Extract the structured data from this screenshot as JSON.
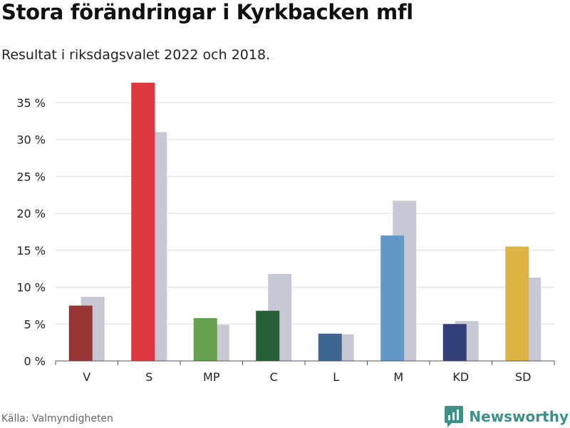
{
  "header": {
    "title": "Stora förändringar i Kyrkbacken mfl",
    "subtitle": "Resultat i riksdagsvalet 2022 och 2018."
  },
  "footer": {
    "source": "Källa: Valmyndigheten",
    "brand": "Newsworthy",
    "brand_icon": "bar-chart-logo-icon"
  },
  "chart_data": {
    "type": "bar",
    "title": "Stora förändringar i Kyrkbacken mfl",
    "subtitle": "Resultat i riksdagsvalet 2022 och 2018.",
    "xlabel": "",
    "ylabel": "",
    "ylim": [
      0,
      37.5
    ],
    "yticks": [
      0,
      5,
      10,
      15,
      20,
      25,
      30,
      35
    ],
    "ytick_labels": [
      "0 %",
      "5 %",
      "10 %",
      "15 %",
      "20 %",
      "25 %",
      "30 %",
      "35 %"
    ],
    "grid": true,
    "legend": "none",
    "categories": [
      "V",
      "S",
      "MP",
      "C",
      "L",
      "M",
      "KD",
      "SD"
    ],
    "series": [
      {
        "values": [
          7.5,
          37.7,
          5.8,
          6.8,
          3.7,
          17.0,
          5.0,
          15.5
        ],
        "colors": [
          "#983636",
          "#dd3740",
          "#66a04e",
          "#265f35",
          "#3f6593",
          "#6198c6",
          "#323f78",
          "#ddb344"
        ]
      },
      {
        "values": [
          8.7,
          31.0,
          4.9,
          11.8,
          3.6,
          21.7,
          5.4,
          11.3
        ],
        "color": "#c8c8d4"
      }
    ]
  }
}
